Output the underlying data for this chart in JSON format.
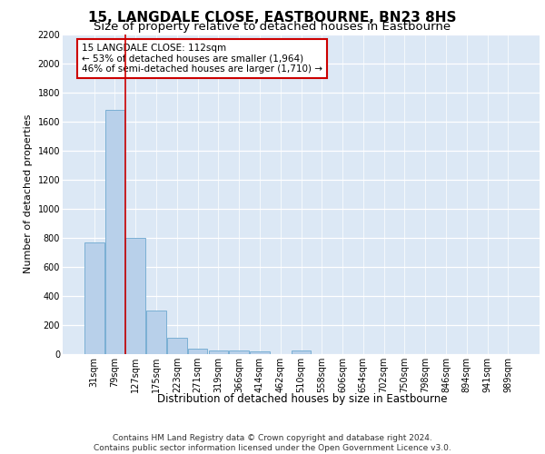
{
  "title": "15, LANGDALE CLOSE, EASTBOURNE, BN23 8HS",
  "subtitle": "Size of property relative to detached houses in Eastbourne",
  "xlabel": "Distribution of detached houses by size in Eastbourne",
  "ylabel": "Number of detached properties",
  "categories": [
    "31sqm",
    "79sqm",
    "127sqm",
    "175sqm",
    "223sqm",
    "271sqm",
    "319sqm",
    "366sqm",
    "414sqm",
    "462sqm",
    "510sqm",
    "558sqm",
    "606sqm",
    "654sqm",
    "702sqm",
    "750sqm",
    "798sqm",
    "846sqm",
    "894sqm",
    "941sqm",
    "989sqm"
  ],
  "values": [
    770,
    1680,
    800,
    300,
    110,
    40,
    28,
    22,
    20,
    0,
    22,
    0,
    0,
    0,
    0,
    0,
    0,
    0,
    0,
    0,
    0
  ],
  "bar_color": "#b8d0ea",
  "bar_edge_color": "#7aafd4",
  "vline_x_idx": 1,
  "vline_color": "#cc0000",
  "annotation_text": "15 LANGDALE CLOSE: 112sqm\n← 53% of detached houses are smaller (1,964)\n46% of semi-detached houses are larger (1,710) →",
  "annotation_box_color": "#ffffff",
  "annotation_box_edge_color": "#cc0000",
  "ylim": [
    0,
    2200
  ],
  "yticks": [
    0,
    200,
    400,
    600,
    800,
    1000,
    1200,
    1400,
    1600,
    1800,
    2000,
    2200
  ],
  "plot_bg_color": "#dce8f5",
  "footer": "Contains HM Land Registry data © Crown copyright and database right 2024.\nContains public sector information licensed under the Open Government Licence v3.0.",
  "title_fontsize": 11,
  "subtitle_fontsize": 9.5,
  "xlabel_fontsize": 8.5,
  "ylabel_fontsize": 8,
  "tick_fontsize": 7,
  "annotation_fontsize": 7.5,
  "footer_fontsize": 6.5
}
